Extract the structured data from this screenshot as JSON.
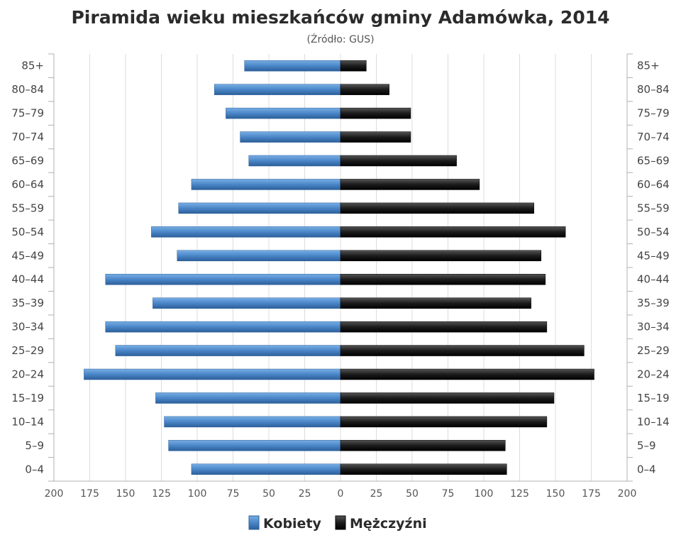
{
  "chart_data": {
    "type": "bar",
    "orientation": "horizontal-pyramid",
    "title": "Piramida wieku mieszkańców gminy Adamówka, 2014",
    "subtitle": "(Źródło: GUS)",
    "categories": [
      "85+",
      "80-84",
      "75-79",
      "70-74",
      "65-69",
      "60-64",
      "55-59",
      "50-54",
      "45-49",
      "40-44",
      "35-39",
      "30-34",
      "25-29",
      "20-24",
      "15-19",
      "10-14",
      "5-9",
      "0-4"
    ],
    "x_ticks": [
      "200",
      "175",
      "150",
      "125",
      "100",
      "75",
      "50",
      "25",
      "0",
      "25",
      "50",
      "75",
      "100",
      "125",
      "150",
      "175",
      "200"
    ],
    "xlim": [
      -200,
      200
    ],
    "grid": true,
    "legend_position": "bottom-center",
    "series": [
      {
        "name": "Kobiety",
        "color": "#4a86c8",
        "values": [
          67,
          88,
          80,
          70,
          64,
          104,
          113,
          132,
          114,
          164,
          131,
          164,
          157,
          179,
          129,
          123,
          120,
          104
        ]
      },
      {
        "name": "Mężczyźni",
        "color": "#222222",
        "values": [
          18,
          34,
          49,
          49,
          81,
          97,
          135,
          157,
          140,
          143,
          133,
          144,
          170,
          177,
          149,
          144,
          115,
          116
        ]
      }
    ]
  }
}
